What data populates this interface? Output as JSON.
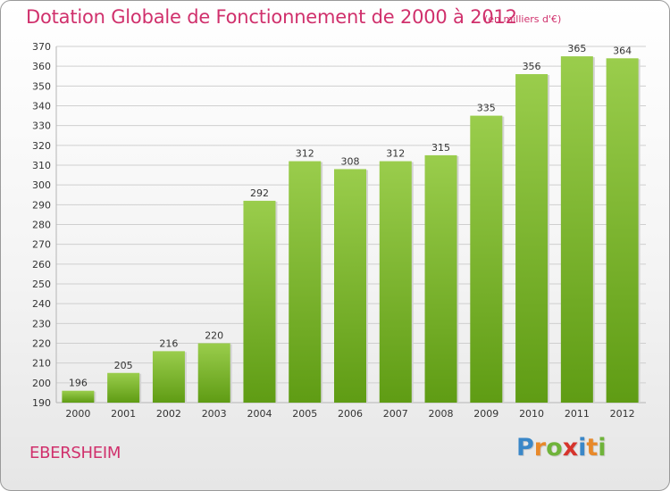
{
  "header": {
    "title": "Dotation Globale de Fonctionnement de 2000 à 2012",
    "subtitle": "(en milliers d'€)"
  },
  "footer": {
    "town": "EBERSHEIM",
    "logo_letters": [
      "P",
      "r",
      "o",
      "x",
      "i",
      "t",
      "i"
    ],
    "logo_colors": [
      "#3a87c8",
      "#e8892a",
      "#6fb33a",
      "#d6342c",
      "#3a87c8",
      "#e8892a",
      "#6fb33a"
    ]
  },
  "colors": {
    "bar_top": "#9acd4c",
    "bar_bottom": "#5f9c14",
    "grid": "#cfcfcf",
    "axis_text": "#333333",
    "accent": "#d0306c"
  },
  "chart_data": {
    "type": "bar",
    "title": "Dotation Globale de Fonctionnement de 2000 à 2012",
    "xlabel": "",
    "ylabel": "",
    "categories": [
      "2000",
      "2001",
      "2002",
      "2003",
      "2004",
      "2005",
      "2006",
      "2007",
      "2008",
      "2009",
      "2010",
      "2011",
      "2012"
    ],
    "values": [
      196,
      205,
      216,
      220,
      292,
      312,
      308,
      312,
      315,
      335,
      356,
      365,
      364
    ],
    "ylim": [
      190,
      370
    ],
    "ytick_step": 10,
    "grid": true
  }
}
